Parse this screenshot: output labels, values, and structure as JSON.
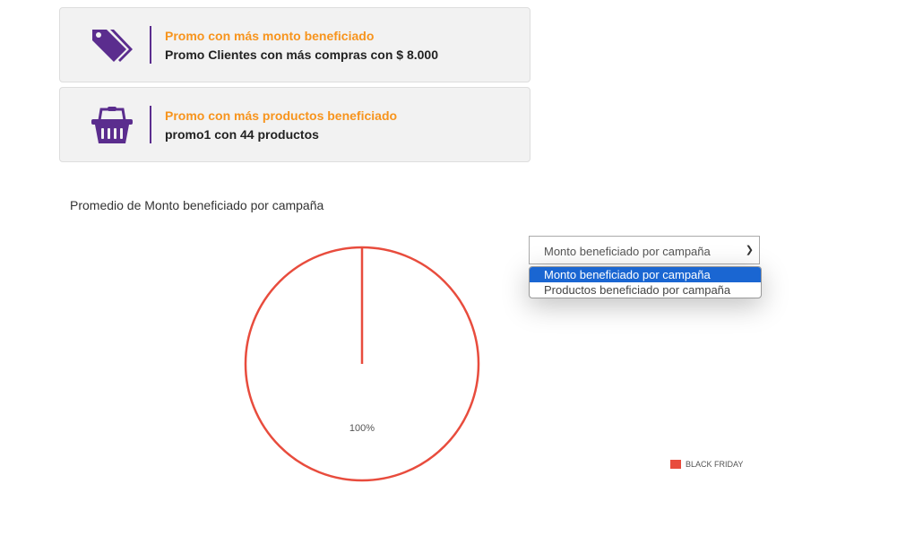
{
  "cards": [
    {
      "title": "Promo con más monto beneficiado",
      "value": "Promo Clientes con más compras con $ 8.000",
      "icon": "tags-icon"
    },
    {
      "title": "Promo con más productos beneficiado",
      "value": "promo1 con 44 productos",
      "icon": "basket-icon"
    }
  ],
  "colors": {
    "accent": "#f7941d",
    "icon": "#5b2d8e",
    "slice": "#e84c3d",
    "selected": "#1a66d2"
  },
  "select": {
    "value": "Monto beneficiado por campaña",
    "options": [
      "Monto beneficiado por campaña",
      "Productos beneficiado por campaña"
    ]
  },
  "chart_data": {
    "type": "pie",
    "title": "Promedio de Monto beneficiado por campaña",
    "categories": [
      "BLACK FRIDAY"
    ],
    "values": [
      100
    ],
    "labels": [
      "100%"
    ],
    "legend": "bottom-right"
  }
}
